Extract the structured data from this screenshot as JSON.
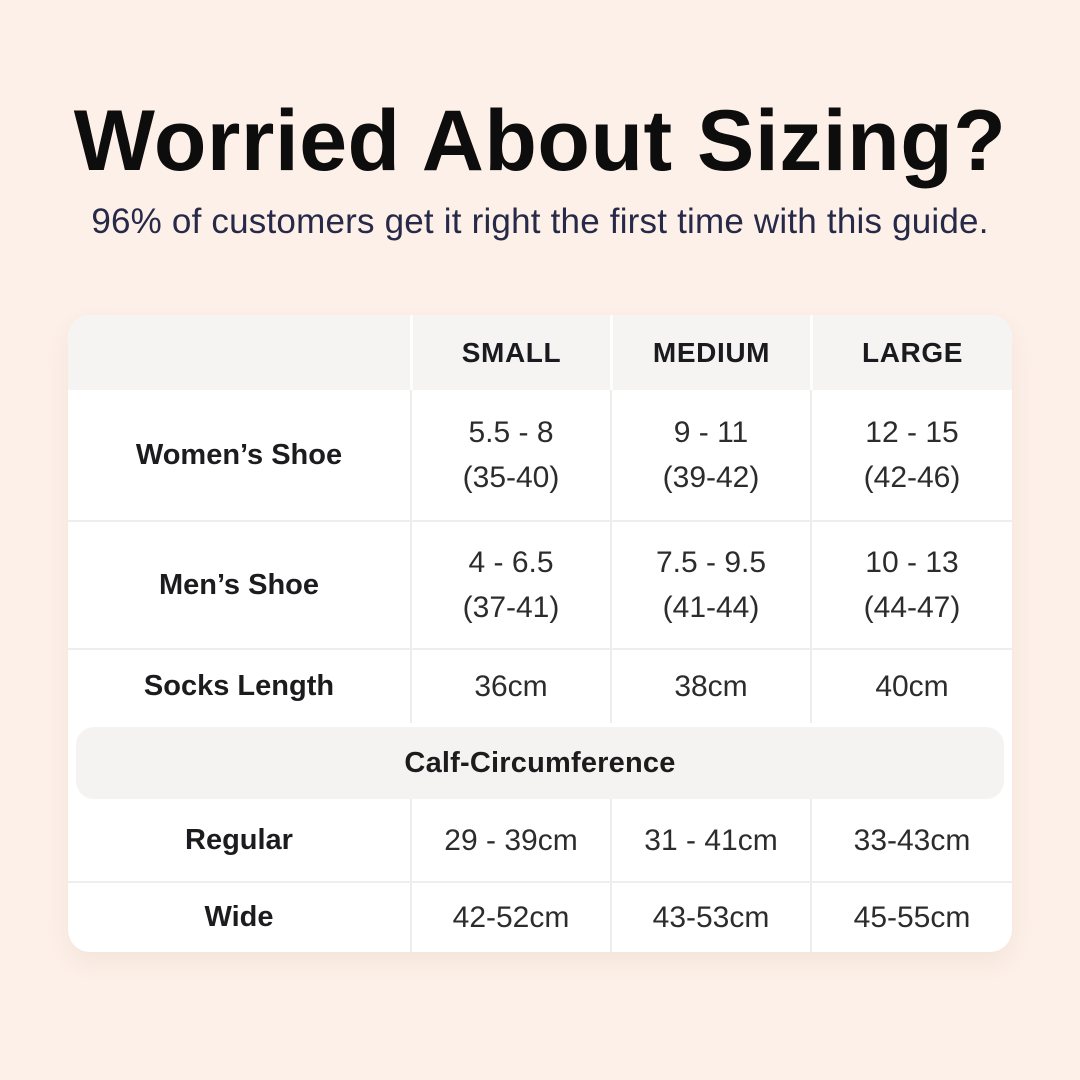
{
  "header": {
    "title": "Worried About Sizing?",
    "subtitle": "96% of customers get it right the first time with this guide."
  },
  "colors": {
    "background": "#fdf0e8",
    "card": "#ffffff",
    "header_band": "#f5f4f2",
    "divider": "#ededeb",
    "title_text": "#0d0d0d",
    "subtitle_text": "#262947",
    "body_text": "#2c2c2c"
  },
  "chart_data": {
    "type": "table",
    "title": "Worried About Sizing?",
    "subtitle": "96% of customers get it right the first time with this guide.",
    "headers": {
      "small": "SMALL",
      "medium": "MEDIUM",
      "large": "LARGE"
    },
    "rows": [
      {
        "label": "Women’s Shoe",
        "small": [
          "5.5 - 8",
          "(35-40)"
        ],
        "medium": [
          "9 - 11",
          "(39-42)"
        ],
        "large": [
          "12 - 15",
          "(42-46)"
        ]
      },
      {
        "label": "Men’s Shoe",
        "small": [
          "4 - 6.5",
          "(37-41)"
        ],
        "medium": [
          "7.5 - 9.5",
          "(41-44)"
        ],
        "large": [
          "10 - 13",
          "(44-47)"
        ]
      },
      {
        "label": "Socks Length",
        "small": "36cm",
        "medium": "38cm",
        "large": "40cm"
      }
    ],
    "section": {
      "title": "Calf-Circumference",
      "rows": [
        {
          "label": "Regular",
          "small": "29 - 39cm",
          "medium": "31 - 41cm",
          "large": "33-43cm"
        },
        {
          "label": "Wide",
          "small": "42-52cm",
          "medium": "43-53cm",
          "large": "45-55cm"
        }
      ]
    }
  }
}
